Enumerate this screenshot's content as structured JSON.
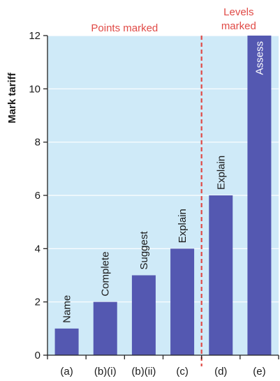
{
  "chart_data": {
    "type": "bar",
    "categories": [
      "(a)",
      "(b)(i)",
      "(b)(ii)",
      "(c)",
      "(d)",
      "(e)"
    ],
    "values": [
      1,
      2,
      3,
      4,
      6,
      12
    ],
    "bar_labels": [
      "Name",
      "Complete",
      "Suggest",
      "Explain",
      "Explain",
      "Assess"
    ],
    "ylabel": "Mark tariff",
    "xlabel": "",
    "ylim": [
      0,
      12
    ],
    "yticks": [
      0,
      2,
      4,
      6,
      8,
      10,
      12
    ],
    "grid": true,
    "regions": [
      {
        "label_lines": [
          "Points marked"
        ],
        "categories": [
          "(a)",
          "(b)(i)",
          "(b)(ii)",
          "(c)"
        ]
      },
      {
        "label_lines": [
          "Levels",
          "marked"
        ],
        "categories": [
          "(d)",
          "(e)"
        ]
      }
    ],
    "divider": {
      "between": [
        "(c)",
        "(d)"
      ],
      "style": "dashed"
    },
    "colors": {
      "bar": "#5458b1",
      "background": "#cfeaf8",
      "grid": "#ffffff",
      "divider": "#e04a46",
      "region_label": "#e04a46"
    }
  }
}
